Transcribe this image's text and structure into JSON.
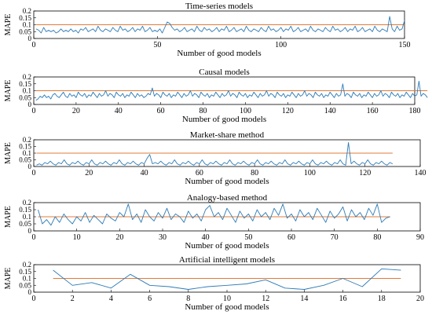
{
  "figure": {
    "line_color": "#2c7bb6",
    "threshold_color": "#e07b39"
  },
  "chart_data": [
    {
      "type": "line",
      "title": "Time-series models",
      "xlabel": "Number of good models",
      "ylabel": "MAPE",
      "xlim": [
        0,
        150
      ],
      "ylim": [
        0,
        0.2
      ],
      "xticks": [
        "0",
        "50",
        "100",
        "150"
      ],
      "yticks": [
        "0",
        "0.05",
        "0.1",
        "0.15",
        "0.2"
      ],
      "threshold": 0.1,
      "series": [
        {
          "x_start": 1,
          "x_step": 1,
          "values": [
            0.07,
            0.06,
            0.04,
            0.08,
            0.05,
            0.06,
            0.05,
            0.06,
            0.04,
            0.05,
            0.07,
            0.05,
            0.06,
            0.05,
            0.07,
            0.05,
            0.06,
            0.04,
            0.07,
            0.06,
            0.08,
            0.05,
            0.06,
            0.07,
            0.05,
            0.09,
            0.06,
            0.05,
            0.07,
            0.06,
            0.05,
            0.08,
            0.06,
            0.05,
            0.09,
            0.06,
            0.07,
            0.05,
            0.06,
            0.08,
            0.05,
            0.07,
            0.06,
            0.09,
            0.05,
            0.06,
            0.08,
            0.05,
            0.06,
            0.05,
            0.07,
            0.04,
            0.08,
            0.12,
            0.11,
            0.08,
            0.06,
            0.07,
            0.05,
            0.06,
            0.08,
            0.05,
            0.06,
            0.07,
            0.05,
            0.09,
            0.06,
            0.05,
            0.08,
            0.06,
            0.07,
            0.05,
            0.06,
            0.08,
            0.05,
            0.07,
            0.06,
            0.09,
            0.05,
            0.06,
            0.08,
            0.05,
            0.06,
            0.07,
            0.05,
            0.09,
            0.06,
            0.05,
            0.07,
            0.06,
            0.05,
            0.08,
            0.06,
            0.05,
            0.09,
            0.06,
            0.07,
            0.05,
            0.06,
            0.08,
            0.05,
            0.07,
            0.06,
            0.09,
            0.05,
            0.06,
            0.08,
            0.05,
            0.06,
            0.07,
            0.05,
            0.09,
            0.06,
            0.05,
            0.07,
            0.06,
            0.05,
            0.08,
            0.06,
            0.05,
            0.09,
            0.06,
            0.07,
            0.05,
            0.06,
            0.08,
            0.05,
            0.07,
            0.06,
            0.09,
            0.05,
            0.06,
            0.08,
            0.05,
            0.06,
            0.07,
            0.05,
            0.09,
            0.06,
            0.05,
            0.07,
            0.06,
            0.05,
            0.16,
            0.07,
            0.05,
            0.09,
            0.06,
            0.07,
            0.13
          ]
        }
      ]
    },
    {
      "type": "line",
      "title": "Causal models",
      "xlabel": "Number of good models",
      "ylabel": "MAPE",
      "xlim": [
        0,
        180
      ],
      "ylim": [
        0,
        0.2
      ],
      "xticks": [
        "0",
        "20",
        "40",
        "60",
        "80",
        "100",
        "120",
        "140",
        "160",
        "180"
      ],
      "yticks": [
        "0",
        "0.05",
        "0.1",
        "0.15",
        "0.2"
      ],
      "threshold": 0.1,
      "series": [
        {
          "x_start": 1,
          "x_step": 1,
          "values": [
            0.03,
            0.04,
            0.06,
            0.05,
            0.07,
            0.05,
            0.06,
            0.04,
            0.07,
            0.08,
            0.06,
            0.05,
            0.07,
            0.09,
            0.06,
            0.05,
            0.08,
            0.06,
            0.07,
            0.05,
            0.09,
            0.07,
            0.06,
            0.08,
            0.05,
            0.07,
            0.06,
            0.09,
            0.07,
            0.05,
            0.08,
            0.06,
            0.07,
            0.1,
            0.06,
            0.08,
            0.07,
            0.05,
            0.09,
            0.07,
            0.06,
            0.08,
            0.05,
            0.07,
            0.06,
            0.09,
            0.07,
            0.05,
            0.08,
            0.06,
            0.07,
            0.05,
            0.06,
            0.08,
            0.07,
            0.12,
            0.06,
            0.08,
            0.07,
            0.05,
            0.09,
            0.07,
            0.06,
            0.08,
            0.05,
            0.07,
            0.06,
            0.09,
            0.07,
            0.05,
            0.08,
            0.06,
            0.07,
            0.1,
            0.06,
            0.08,
            0.07,
            0.05,
            0.09,
            0.07,
            0.06,
            0.08,
            0.05,
            0.07,
            0.06,
            0.09,
            0.07,
            0.05,
            0.08,
            0.06,
            0.07,
            0.1,
            0.06,
            0.08,
            0.07,
            0.05,
            0.09,
            0.07,
            0.06,
            0.08,
            0.05,
            0.07,
            0.06,
            0.09,
            0.07,
            0.05,
            0.08,
            0.06,
            0.07,
            0.1,
            0.06,
            0.08,
            0.07,
            0.05,
            0.09,
            0.07,
            0.06,
            0.08,
            0.05,
            0.07,
            0.06,
            0.09,
            0.07,
            0.05,
            0.08,
            0.06,
            0.07,
            0.1,
            0.06,
            0.08,
            0.07,
            0.05,
            0.09,
            0.07,
            0.06,
            0.08,
            0.05,
            0.07,
            0.06,
            0.09,
            0.07,
            0.05,
            0.08,
            0.06,
            0.07,
            0.15,
            0.06,
            0.08,
            0.07,
            0.05,
            0.09,
            0.07,
            0.06,
            0.08,
            0.05,
            0.07,
            0.06,
            0.09,
            0.07,
            0.05,
            0.08,
            0.06,
            0.07,
            0.1,
            0.06,
            0.08,
            0.07,
            0.05,
            0.09,
            0.07,
            0.06,
            0.08,
            0.05,
            0.07,
            0.06,
            0.09,
            0.07,
            0.05,
            0.08,
            0.06,
            0.07,
            0.17,
            0.06,
            0.08,
            0.07,
            0.05
          ]
        }
      ]
    },
    {
      "type": "line",
      "title": "Market-share method",
      "xlabel": "Number of good models",
      "ylabel": "MAPE",
      "xlim": [
        0,
        140
      ],
      "ylim": [
        0,
        0.2
      ],
      "xticks": [
        "0",
        "20",
        "40",
        "60",
        "80",
        "100",
        "120",
        "140"
      ],
      "yticks": [
        "0",
        "0.05",
        "0.1",
        "0.15",
        "0.2"
      ],
      "threshold": 0.1,
      "series": [
        {
          "x_start": 1,
          "x_step": 1,
          "values": [
            0.01,
            0.02,
            0.01,
            0.03,
            0.02,
            0.04,
            0.02,
            0.01,
            0.03,
            0.02,
            0.05,
            0.02,
            0.01,
            0.03,
            0.02,
            0.04,
            0.02,
            0.01,
            0.03,
            0.02,
            0.05,
            0.02,
            0.01,
            0.03,
            0.02,
            0.04,
            0.02,
            0.01,
            0.03,
            0.02,
            0.05,
            0.02,
            0.01,
            0.03,
            0.02,
            0.04,
            0.02,
            0.01,
            0.03,
            0.02,
            0.06,
            0.09,
            0.02,
            0.03,
            0.02,
            0.04,
            0.02,
            0.01,
            0.03,
            0.02,
            0.05,
            0.02,
            0.01,
            0.03,
            0.02,
            0.04,
            0.02,
            0.01,
            0.03,
            0.02,
            0.05,
            0.02,
            0.01,
            0.03,
            0.02,
            0.04,
            0.02,
            0.01,
            0.03,
            0.02,
            0.05,
            0.02,
            0.01,
            0.03,
            0.02,
            0.04,
            0.02,
            0.01,
            0.03,
            0.02,
            0.05,
            0.02,
            0.01,
            0.03,
            0.02,
            0.04,
            0.02,
            0.01,
            0.03,
            0.02,
            0.05,
            0.02,
            0.01,
            0.03,
            0.02,
            0.04,
            0.02,
            0.01,
            0.03,
            0.02,
            0.05,
            0.02,
            0.01,
            0.03,
            0.02,
            0.04,
            0.02,
            0.01,
            0.03,
            0.02,
            0.05,
            0.02,
            0.01,
            0.18,
            0.02,
            0.04,
            0.02,
            0.01,
            0.03,
            0.02,
            0.05,
            0.02,
            0.01,
            0.03,
            0.02,
            0.04,
            0.02,
            0.01,
            0.03,
            0.02
          ]
        }
      ]
    },
    {
      "type": "line",
      "title": "Analogy-based method",
      "xlabel": "Number of good models",
      "ylabel": "MAPE",
      "xlim": [
        0,
        90
      ],
      "ylim": [
        0,
        0.2
      ],
      "xticks": [
        "0",
        "10",
        "20",
        "30",
        "40",
        "50",
        "60",
        "70",
        "80",
        "90"
      ],
      "yticks": [
        "0",
        "0.05",
        "0.1",
        "0.15",
        "0.2"
      ],
      "threshold": 0.1,
      "series": [
        {
          "x_start": 1,
          "x_step": 1,
          "values": [
            0.15,
            0.05,
            0.08,
            0.04,
            0.1,
            0.06,
            0.12,
            0.08,
            0.05,
            0.1,
            0.07,
            0.13,
            0.06,
            0.11,
            0.08,
            0.05,
            0.12,
            0.09,
            0.07,
            0.13,
            0.1,
            0.19,
            0.08,
            0.12,
            0.06,
            0.15,
            0.1,
            0.07,
            0.13,
            0.09,
            0.16,
            0.08,
            0.12,
            0.1,
            0.06,
            0.14,
            0.09,
            0.12,
            0.07,
            0.15,
            0.18,
            0.1,
            0.13,
            0.08,
            0.16,
            0.11,
            0.06,
            0.14,
            0.09,
            0.12,
            0.07,
            0.15,
            0.1,
            0.13,
            0.08,
            0.16,
            0.11,
            0.19,
            0.09,
            0.12,
            0.07,
            0.15,
            0.1,
            0.13,
            0.08,
            0.16,
            0.11,
            0.06,
            0.14,
            0.09,
            0.12,
            0.17,
            0.07,
            0.15,
            0.1,
            0.13,
            0.08,
            0.16,
            0.11,
            0.19,
            0.06,
            0.09,
            0.1
          ]
        }
      ]
    },
    {
      "type": "line",
      "title": "Artificial intelligent models",
      "xlabel": "Number of good models",
      "ylabel": "MAPE",
      "xlim": [
        0,
        20
      ],
      "ylim": [
        0,
        0.2
      ],
      "xticks": [
        "0",
        "2",
        "4",
        "6",
        "8",
        "10",
        "12",
        "14",
        "16",
        "18",
        "20"
      ],
      "yticks": [
        "0",
        "0.05",
        "0.1",
        "0.15",
        "0.2"
      ],
      "threshold": 0.1,
      "series": [
        {
          "x_start": 1,
          "x_step": 1,
          "values": [
            0.16,
            0.05,
            0.07,
            0.03,
            0.13,
            0.05,
            0.04,
            0.02,
            0.04,
            0.05,
            0.06,
            0.09,
            0.03,
            0.02,
            0.05,
            0.1,
            0.04,
            0.17,
            0.16
          ]
        }
      ]
    }
  ]
}
